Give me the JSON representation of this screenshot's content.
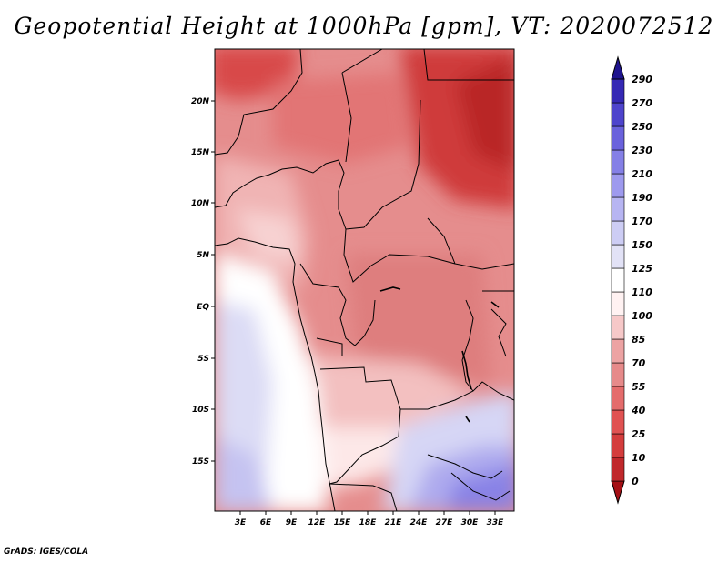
{
  "title": "Geopotential Height at 1000hPa [gpm], VT: 2020072512",
  "credit": "GrADS: IGES/COLA",
  "map": {
    "lat_labels": [
      "20N",
      "15N",
      "10N",
      "5N",
      "EQ",
      "5S",
      "10S",
      "15S"
    ],
    "lon_labels": [
      "3E",
      "6E",
      "9E",
      "12E",
      "15E",
      "18E",
      "21E",
      "24E",
      "27E",
      "30E",
      "33E"
    ]
  },
  "colorbar": {
    "levels": [
      "0",
      "10",
      "25",
      "40",
      "55",
      "70",
      "85",
      "100",
      "110",
      "125",
      "150",
      "170",
      "190",
      "210",
      "230",
      "250",
      "270",
      "290"
    ],
    "colors": [
      "#a50f15",
      "#c0282c",
      "#d43d3d",
      "#e05252",
      "#e46c6c",
      "#e68a8a",
      "#eca3a3",
      "#f6c8c8",
      "#fff2f2",
      "#ffffff",
      "#e2e2f6",
      "#cdcdf4",
      "#b7b5f2",
      "#9e9aee",
      "#8580e6",
      "#6a62dc",
      "#4e44cc",
      "#3529b4",
      "#1f148f"
    ]
  }
}
